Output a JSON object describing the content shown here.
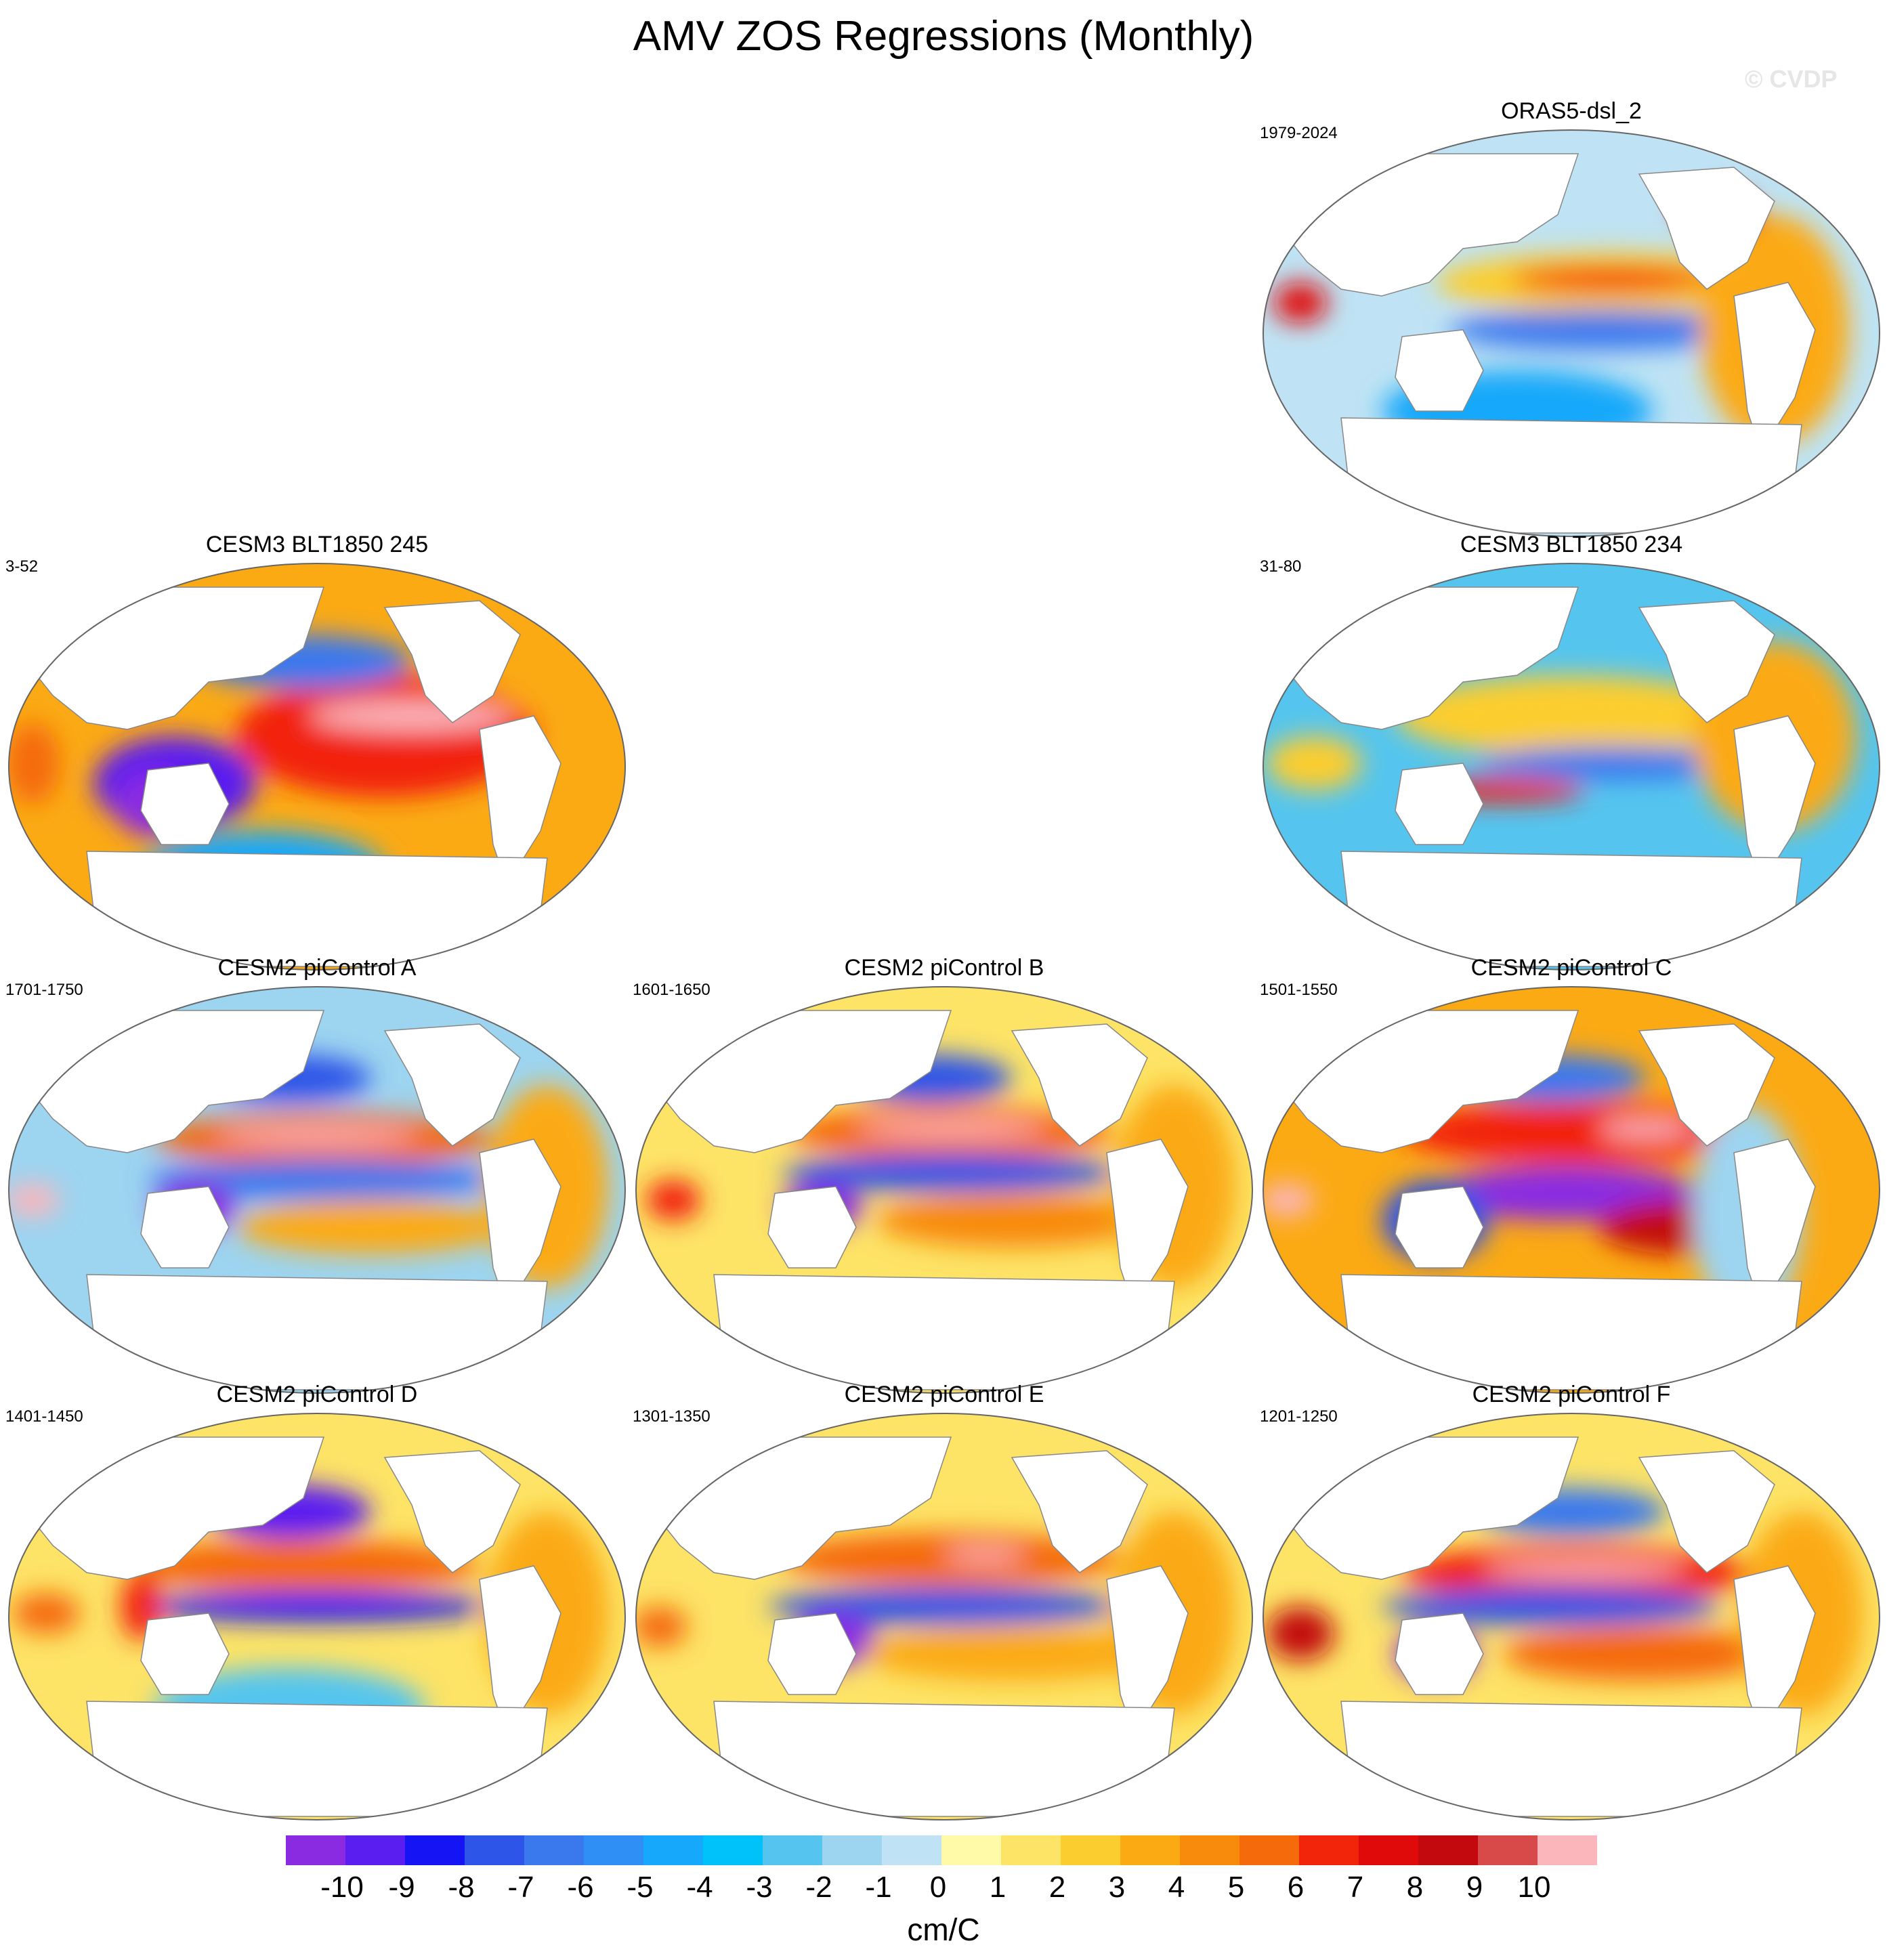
{
  "title": "AMV ZOS Regressions (Monthly)",
  "watermark": "© CVDP",
  "panels": [
    {
      "title": "ORAS5-dsl_2",
      "years": "1979-2024"
    },
    {
      "title": "CESM3 BLT1850 245",
      "years": "3-52"
    },
    {
      "title": "CESM3 BLT1850 234",
      "years": "31-80"
    },
    {
      "title": "CESM2 piControl A",
      "years": "1701-1750"
    },
    {
      "title": "CESM2 piControl B",
      "years": "1601-1650"
    },
    {
      "title": "CESM2 piControl C",
      "years": "1501-1550"
    },
    {
      "title": "CESM2 piControl D",
      "years": "1401-1450"
    },
    {
      "title": "CESM2 piControl E",
      "years": "1301-1350"
    },
    {
      "title": "CESM2 piControl F",
      "years": "1201-1250"
    }
  ],
  "colorbar": {
    "labels": [
      "-10",
      "-9",
      "-8",
      "-7",
      "-6",
      "-5",
      "-4",
      "-3",
      "-2",
      "-1",
      "0",
      "1",
      "2",
      "3",
      "4",
      "5",
      "6",
      "7",
      "8",
      "9",
      "10"
    ],
    "colors": [
      "#8a2be2",
      "#5a1ef0",
      "#1414f5",
      "#2d55e8",
      "#3a78ee",
      "#2f8ff5",
      "#16a8fa",
      "#00c2fb",
      "#55c5ef",
      "#9dd4f0",
      "#bfe3f4",
      "#fffaa8",
      "#fde366",
      "#fccd2e",
      "#fbaa14",
      "#f88a0c",
      "#f56a0a",
      "#f2240a",
      "#e00a0a",
      "#c3090d",
      "#d84a4a",
      "#fbb6bc"
    ],
    "units": "cm/C"
  }
}
